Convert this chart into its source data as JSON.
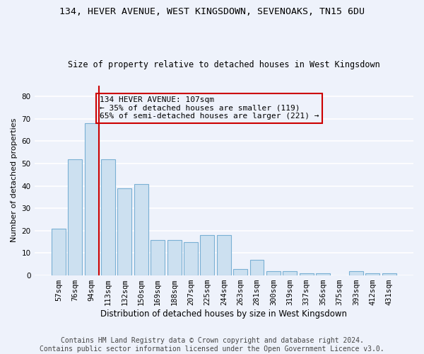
{
  "title1": "134, HEVER AVENUE, WEST KINGSDOWN, SEVENOAKS, TN15 6DU",
  "title2": "Size of property relative to detached houses in West Kingsdown",
  "xlabel": "Distribution of detached houses by size in West Kingsdown",
  "ylabel": "Number of detached properties",
  "categories": [
    "57sqm",
    "76sqm",
    "94sqm",
    "113sqm",
    "132sqm",
    "150sqm",
    "169sqm",
    "188sqm",
    "207sqm",
    "225sqm",
    "244sqm",
    "263sqm",
    "281sqm",
    "300sqm",
    "319sqm",
    "337sqm",
    "356sqm",
    "375sqm",
    "393sqm",
    "412sqm",
    "431sqm"
  ],
  "values": [
    21,
    52,
    68,
    52,
    39,
    41,
    16,
    16,
    15,
    18,
    18,
    3,
    7,
    2,
    2,
    1,
    1,
    0,
    2,
    1,
    1
  ],
  "bar_color": "#cce0f0",
  "bar_edge_color": "#7ab0d4",
  "vline_color": "#cc0000",
  "vline_bar_index": 2,
  "annotation_line1": "134 HEVER AVENUE: 107sqm",
  "annotation_line2": "← 35% of detached houses are smaller (119)",
  "annotation_line3": "65% of semi-detached houses are larger (221) →",
  "annotation_box_color": "#cc0000",
  "ylim": [
    0,
    85
  ],
  "yticks": [
    0,
    10,
    20,
    30,
    40,
    50,
    60,
    70,
    80
  ],
  "footer1": "Contains HM Land Registry data © Crown copyright and database right 2024.",
  "footer2": "Contains public sector information licensed under the Open Government Licence v3.0.",
  "bg_color": "#eef2fb",
  "grid_color": "#ffffff",
  "title1_fontsize": 9.5,
  "title2_fontsize": 8.5,
  "xlabel_fontsize": 8.5,
  "ylabel_fontsize": 8.0,
  "tick_fontsize": 7.5,
  "annotation_fontsize": 8.0,
  "footer_fontsize": 7.0
}
